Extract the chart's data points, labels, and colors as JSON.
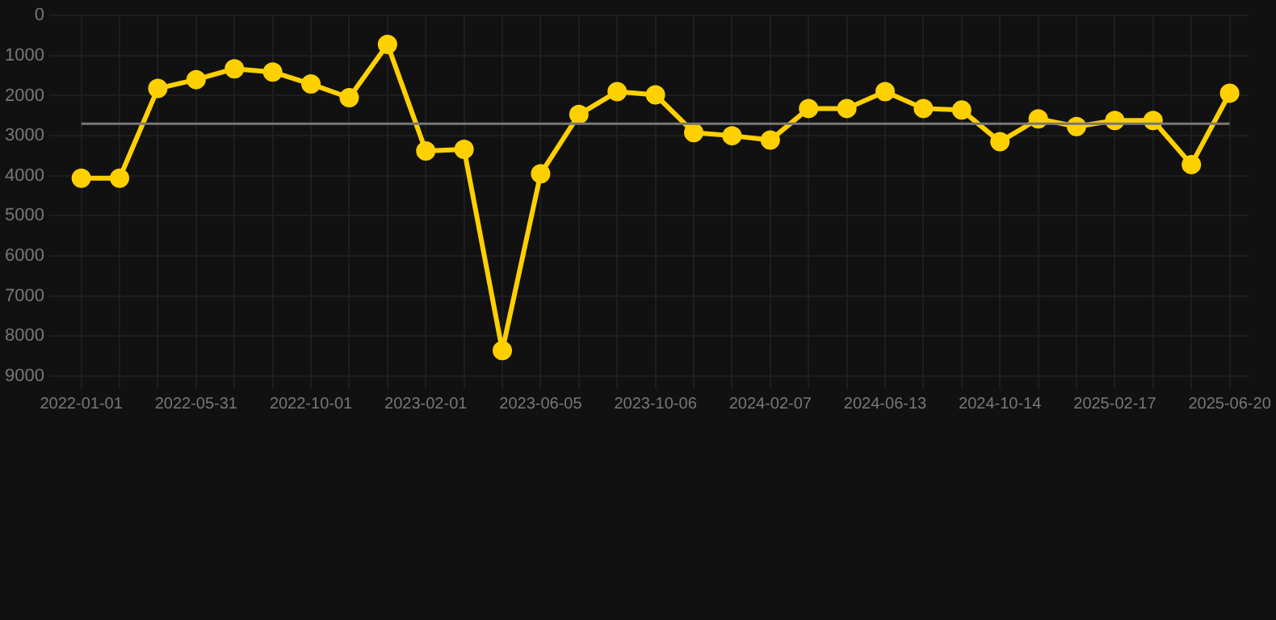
{
  "chart_data": {
    "type": "line",
    "categories": [
      "2022-01-01",
      null,
      null,
      "2022-05-31",
      null,
      null,
      "2022-10-01",
      null,
      null,
      "2023-02-01",
      null,
      null,
      "2023-06-05",
      null,
      null,
      "2023-10-06",
      null,
      null,
      "2024-02-07",
      null,
      null,
      "2024-06-13",
      null,
      null,
      "2024-10-14",
      null,
      null,
      "2025-02-17",
      null,
      null,
      "2025-06-20"
    ],
    "series": [
      {
        "color": "#ffd000",
        "values": [
          4060,
          4060,
          1820,
          1600,
          1330,
          1410,
          1710,
          2050,
          720,
          3380,
          3340,
          8360,
          3950,
          2470,
          1900,
          1980,
          2920,
          3000,
          3110,
          2320,
          2320,
          1900,
          2320,
          2360,
          3150,
          2580,
          2770,
          2620,
          2620,
          3720,
          1940
        ]
      }
    ],
    "ylim": [
      9000,
      0
    ],
    "yticks": [
      0,
      1000,
      2000,
      3000,
      4000,
      5000,
      6000,
      7000,
      8000,
      9000
    ],
    "ref_lines": [
      {
        "axis": "y",
        "value": 2700,
        "color": "#777777"
      }
    ],
    "grid": true,
    "marker": "circle",
    "line_style": "solid",
    "legend": false
  }
}
